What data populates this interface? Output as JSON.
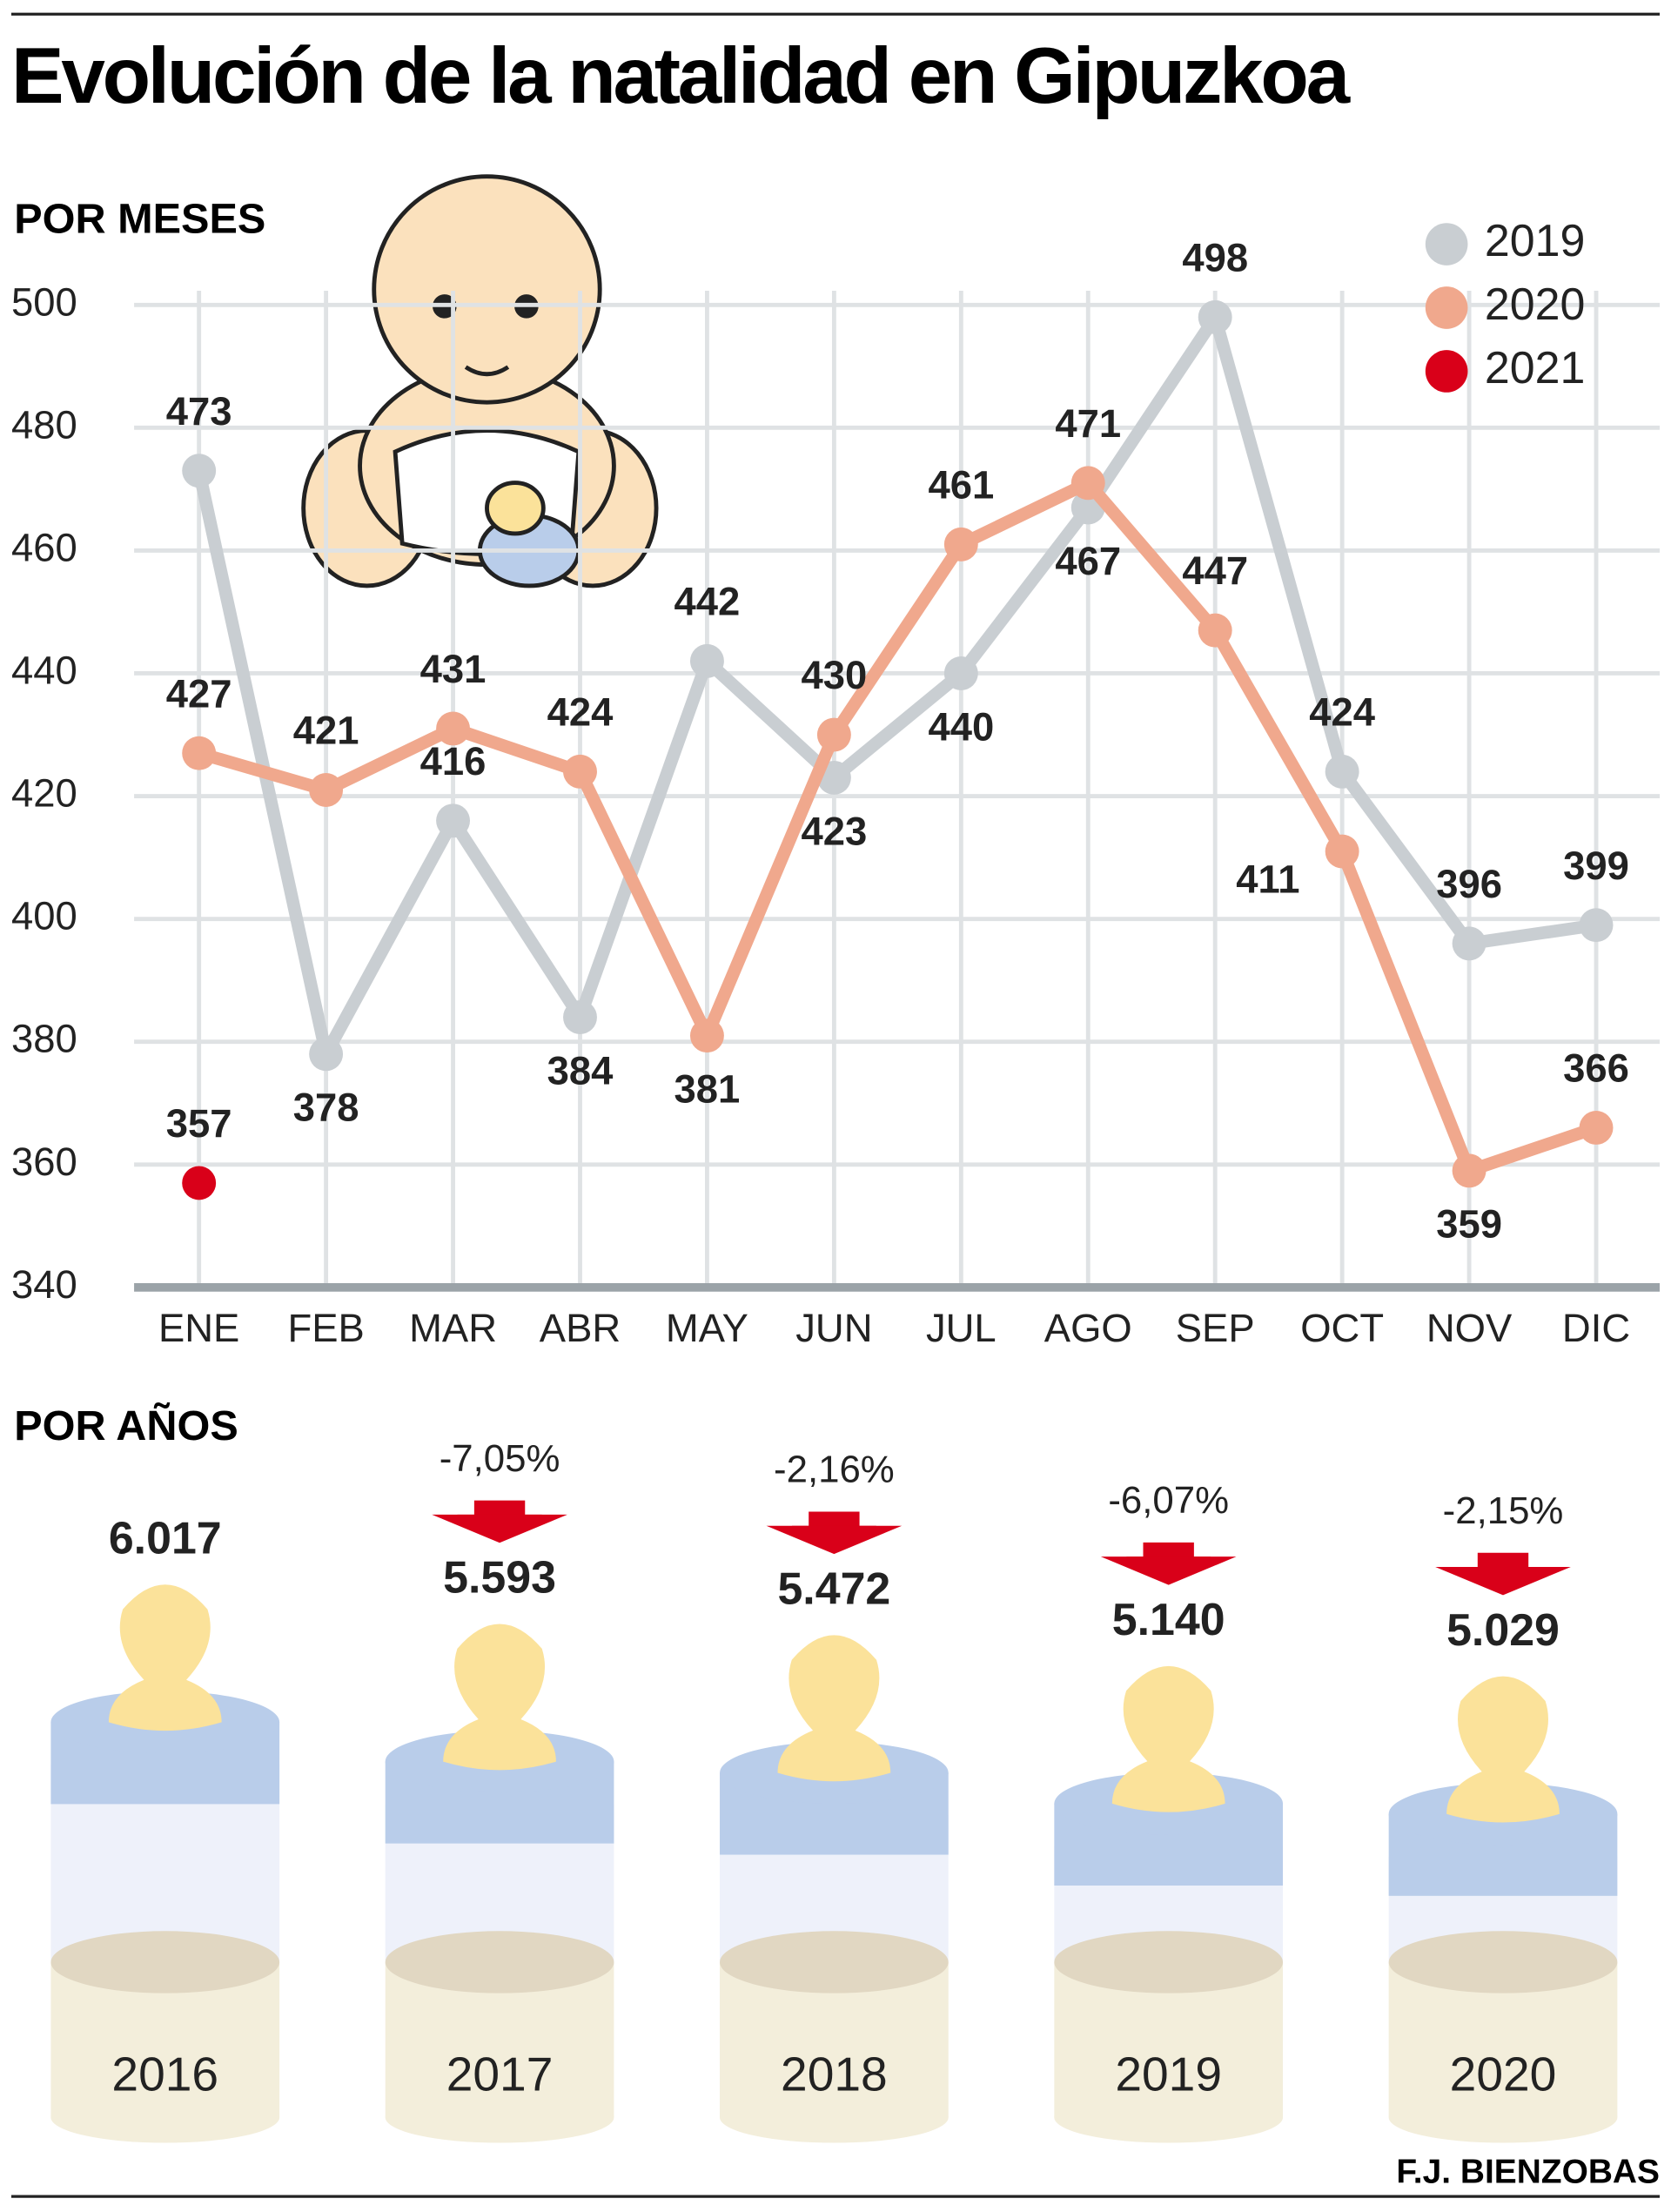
{
  "title": "Evolución de la natalidad en Gipuzkoa",
  "credit": "F.J. BIENZOBAS",
  "chart_data": [
    {
      "type": "line",
      "subtitle": "POR MESES",
      "categories": [
        "ENE",
        "FEB",
        "MAR",
        "ABR",
        "MAY",
        "JUN",
        "JUL",
        "AGO",
        "SEP",
        "OCT",
        "NOV",
        "DIC"
      ],
      "series": [
        {
          "name": "2019",
          "color": "#c9ced2",
          "values": [
            473,
            378,
            416,
            384,
            442,
            423,
            440,
            467,
            498,
            424,
            396,
            399
          ]
        },
        {
          "name": "2020",
          "color": "#f0a88d",
          "values": [
            427,
            421,
            431,
            424,
            381,
            430,
            461,
            471,
            447,
            411,
            359,
            366
          ]
        },
        {
          "name": "2021",
          "color": "#d90019",
          "values": [
            357,
            null,
            null,
            null,
            null,
            null,
            null,
            null,
            null,
            null,
            null,
            null
          ]
        }
      ],
      "ylim": [
        340,
        500
      ],
      "yticks": [
        340,
        360,
        380,
        400,
        420,
        440,
        460,
        480,
        500
      ],
      "grid": true,
      "legend": "top-right"
    },
    {
      "type": "bottle",
      "subtitle": "POR AÑOS",
      "categories": [
        "2016",
        "2017",
        "2018",
        "2019",
        "2020"
      ],
      "values": [
        6017,
        5593,
        5472,
        5140,
        5029
      ],
      "value_labels": [
        "6.017",
        "5.593",
        "5.472",
        "5.140",
        "5.029"
      ],
      "change_values": [
        null,
        -7.05,
        -2.16,
        -6.07,
        -2.15
      ],
      "change_labels": [
        null,
        "-7,05%",
        "-2,16%",
        "-6,07%",
        "-2,15%"
      ],
      "color": "#b9cdea",
      "arrow_color": "#d90019"
    }
  ]
}
